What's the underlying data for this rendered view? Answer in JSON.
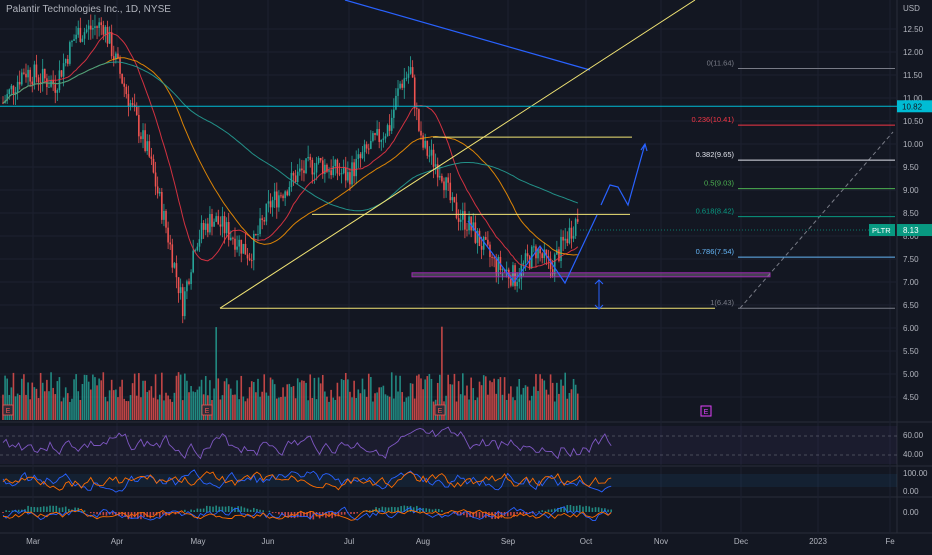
{
  "header": {
    "title": "Palantir Technologies Inc., 1D, NYSE"
  },
  "price_axis": {
    "currency": "USD",
    "ticks": [
      "12.50",
      "12.00",
      "11.50",
      "11.00",
      "10.50",
      "10.00",
      "9.50",
      "9.00",
      "8.50",
      "8.00",
      "7.50",
      "7.00",
      "6.50",
      "6.00",
      "5.50",
      "5.00",
      "4.50"
    ],
    "current_line_label": "10.82",
    "ticker_badge": "PLTR",
    "current_price": "8.13"
  },
  "time_axis": {
    "labels": [
      "Mar",
      "Apr",
      "May",
      "Jun",
      "Jul",
      "Aug",
      "Sep",
      "Oct",
      "Nov",
      "Dec",
      "2023",
      "Fe"
    ]
  },
  "fib_levels": [
    {
      "label": "0(11.64)",
      "price": 11.64,
      "color": "#787b86"
    },
    {
      "label": "0.236(10.41)",
      "price": 10.41,
      "color": "#f23645"
    },
    {
      "label": "0.382(9.65)",
      "price": 9.65,
      "color": "#e0e3eb"
    },
    {
      "label": "0.5(9.03)",
      "price": 9.03,
      "color": "#4caf50"
    },
    {
      "label": "0.618(8.42)",
      "price": 8.42,
      "color": "#089981"
    },
    {
      "label": "0.786(7.54)",
      "price": 7.54,
      "color": "#64b5f6"
    },
    {
      "label": "1(6.43)",
      "price": 6.43,
      "color": "#787b86"
    }
  ],
  "earnings_marker": "E",
  "indicators": {
    "rsi": {
      "ticks": [
        "60.00",
        "40.00"
      ]
    },
    "stoch": {
      "ticks": [
        "100.00",
        "0.00"
      ]
    },
    "macd": {
      "ticks": [
        "0.00"
      ]
    }
  },
  "colors": {
    "up": "#26a69a",
    "down": "#ef5350",
    "background": "#131722"
  }
}
